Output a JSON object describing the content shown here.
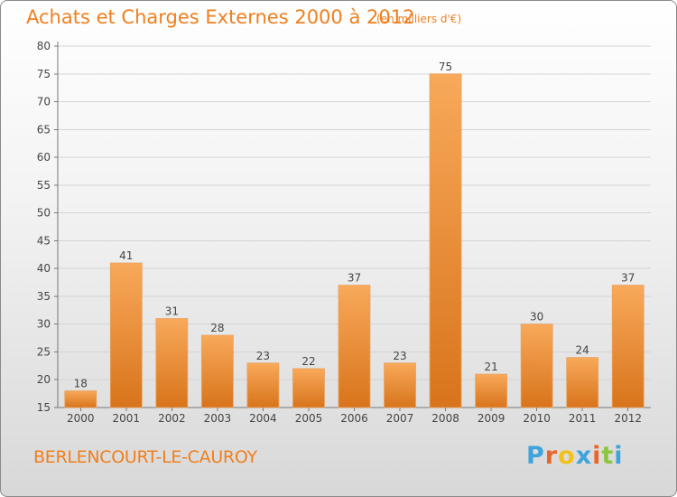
{
  "header": {
    "title": "Achats et Charges Externes 2000 à 2012",
    "subtitle": "(en milliers d'€)"
  },
  "footer": {
    "town": "BERLENCOURT-LE-CAUROY",
    "logo_text": "Proxiti"
  },
  "colors": {
    "accent": "#f07f1e",
    "bar_top": "#f8a95a",
    "bar_bottom": "#d8741b",
    "logo": [
      "#3ea4dc",
      "#e8672a",
      "#f2c21a",
      "#3ea4dc",
      "#e8672a",
      "#8cc63f",
      "#3ea4dc"
    ]
  },
  "chart_data": {
    "type": "bar",
    "title": "Achats et Charges Externes 2000 à 2012",
    "subtitle": "(en milliers d'€)",
    "categories": [
      "2000",
      "2001",
      "2002",
      "2003",
      "2004",
      "2005",
      "2006",
      "2007",
      "2008",
      "2009",
      "2010",
      "2011",
      "2012"
    ],
    "values": [
      18,
      41,
      31,
      28,
      23,
      22,
      37,
      23,
      75,
      21,
      30,
      24,
      37
    ],
    "ylim": [
      15,
      80
    ],
    "yticks": [
      15,
      20,
      25,
      30,
      35,
      40,
      45,
      50,
      55,
      60,
      65,
      70,
      75,
      80
    ],
    "grid": true,
    "xlabel": "",
    "ylabel": ""
  }
}
